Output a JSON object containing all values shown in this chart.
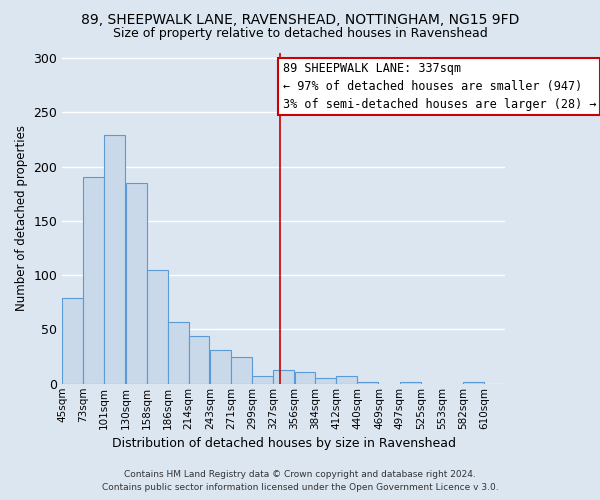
{
  "title": "89, SHEEPWALK LANE, RAVENSHEAD, NOTTINGHAM, NG15 9FD",
  "subtitle": "Size of property relative to detached houses in Ravenshead",
  "xlabel": "Distribution of detached houses by size in Ravenshead",
  "ylabel": "Number of detached properties",
  "bar_left_edges": [
    45,
    73,
    101,
    130,
    158,
    186,
    214,
    243,
    271,
    299,
    327,
    356,
    384,
    412,
    440,
    469,
    497,
    525,
    553,
    582
  ],
  "bar_heights": [
    79,
    190,
    229,
    185,
    105,
    57,
    44,
    31,
    25,
    7,
    13,
    11,
    5,
    7,
    2,
    0,
    2,
    0,
    0,
    2
  ],
  "bin_width": 28,
  "tick_labels": [
    "45sqm",
    "73sqm",
    "101sqm",
    "130sqm",
    "158sqm",
    "186sqm",
    "214sqm",
    "243sqm",
    "271sqm",
    "299sqm",
    "327sqm",
    "356sqm",
    "384sqm",
    "412sqm",
    "440sqm",
    "469sqm",
    "497sqm",
    "525sqm",
    "553sqm",
    "582sqm",
    "610sqm"
  ],
  "bar_facecolor": "#c9d9ea",
  "bar_edgecolor": "#5b9bd5",
  "vline_x": 337,
  "vline_color": "#cc0000",
  "annotation_line1": "89 SHEEPWALK LANE: 337sqm",
  "annotation_line2": "← 97% of detached houses are smaller (947)",
  "annotation_line3": "3% of semi-detached houses are larger (28) →",
  "annotation_box_edgecolor": "#cc0000",
  "annotation_box_facecolor": "#ffffff",
  "ylim": [
    0,
    305
  ],
  "xlim": [
    45,
    638
  ],
  "background_color": "#dce6f1",
  "plot_bg_color": "#dce6f1",
  "grid_color": "#ffffff",
  "footer_line1": "Contains HM Land Registry data © Crown copyright and database right 2024.",
  "footer_line2": "Contains public sector information licensed under the Open Government Licence v 3.0.",
  "title_fontsize": 10,
  "subtitle_fontsize": 9,
  "xlabel_fontsize": 9,
  "ylabel_fontsize": 8.5,
  "tick_fontsize": 7.5,
  "annotation_fontsize": 8.5,
  "footer_fontsize": 6.5
}
